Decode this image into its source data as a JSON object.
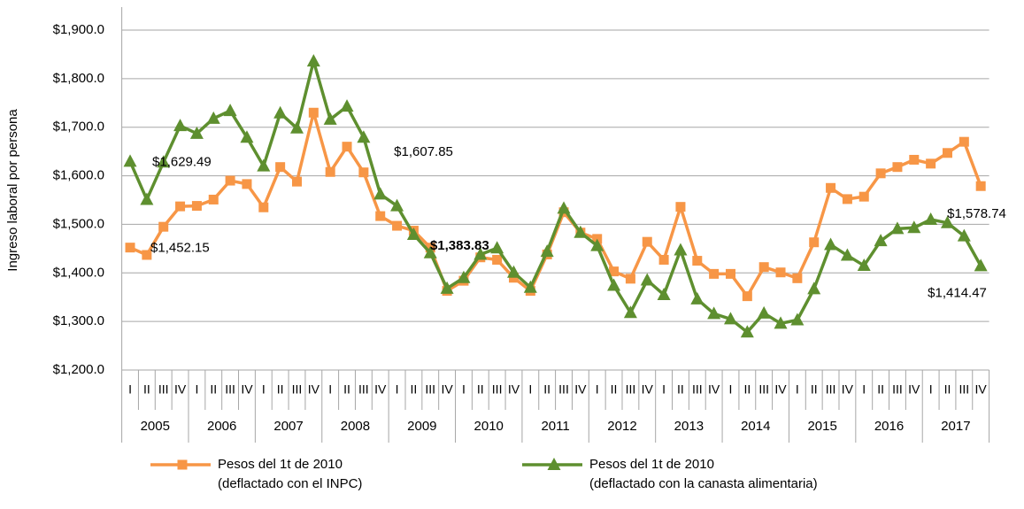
{
  "chart_data": {
    "type": "line",
    "y_label": "Ingreso laboral por persona",
    "categories": [
      "I",
      "II",
      "III",
      "IV",
      "I",
      "II",
      "III",
      "IV",
      "I",
      "II",
      "III",
      "IV",
      "I",
      "II",
      "III",
      "IV",
      "I",
      "II",
      "III",
      "IV",
      "I",
      "II",
      "III",
      "IV",
      "I",
      "II",
      "III",
      "IV",
      "I",
      "II",
      "III",
      "IV",
      "I",
      "II",
      "III",
      "IV",
      "I",
      "II",
      "III",
      "IV",
      "I",
      "II",
      "III",
      "IV",
      "I",
      "II",
      "III",
      "IV",
      "I",
      "II",
      "III",
      "IV"
    ],
    "groups": [
      "2005",
      "2006",
      "2007",
      "2008",
      "2009",
      "2010",
      "2011",
      "2012",
      "2013",
      "2014",
      "2015",
      "2016",
      "2017"
    ],
    "ylim": [
      1200,
      1900
    ],
    "yticks": [
      {
        "value": 1200,
        "label": "$1,200.0"
      },
      {
        "value": 1300,
        "label": "$1,300.0"
      },
      {
        "value": 1400,
        "label": "$1,400.0"
      },
      {
        "value": 1500,
        "label": "$1,500.0"
      },
      {
        "value": 1600,
        "label": "$1,600.0"
      },
      {
        "value": 1700,
        "label": "$1,700.0"
      },
      {
        "value": 1800,
        "label": "$1,800.0"
      },
      {
        "value": 1900,
        "label": "$1,900.0"
      }
    ],
    "grid": true,
    "series": [
      {
        "name": "Pesos del 1t de 2010",
        "note": "(deflactado con el INPC)",
        "color": "#f79646",
        "marker": "square",
        "values": [
          1452.15,
          1437,
          1495,
          1537,
          1538,
          1551,
          1590,
          1583,
          1535,
          1618,
          1588,
          1730,
          1607.85,
          1660,
          1607,
          1517,
          1497,
          1487,
          1452,
          1363,
          1383.83,
          1432,
          1427,
          1390,
          1363,
          1438,
          1525,
          1483,
          1470,
          1403,
          1388,
          1464,
          1427,
          1536,
          1425,
          1398,
          1398,
          1352,
          1412,
          1401,
          1389,
          1463,
          1575,
          1552,
          1557,
          1605,
          1618,
          1633,
          1625,
          1647,
          1670,
          1578.74
        ]
      },
      {
        "name": "Pesos del 1t de 2010",
        "note": "(deflactado con la canasta alimentaria)",
        "color": "#5e8f2f",
        "marker": "triangle",
        "values": [
          1629.49,
          1551,
          1628,
          1703,
          1687,
          1718,
          1734,
          1679,
          1620,
          1729,
          1698,
          1836,
          1716,
          1743,
          1679,
          1562,
          1538,
          1479,
          1441,
          1368,
          1390,
          1438,
          1451,
          1401,
          1370,
          1444,
          1533,
          1483,
          1456,
          1374,
          1318,
          1385,
          1355,
          1447,
          1346,
          1316,
          1305,
          1278,
          1317,
          1296,
          1303,
          1367,
          1458,
          1436,
          1415,
          1466,
          1491,
          1493,
          1510,
          1503,
          1476,
          1414.47
        ]
      }
    ],
    "annotations": [
      {
        "text": "$1,629.49",
        "series": 1,
        "index": 0,
        "bold": false
      },
      {
        "text": "$1,452.15",
        "series": 0,
        "index": 0,
        "bold": false
      },
      {
        "text": "$1,607.85",
        "series": 0,
        "index": 12,
        "bold": false
      },
      {
        "text": "$1,383.83",
        "series": 0,
        "index": 20,
        "bold": true
      },
      {
        "text": "$1,578.74",
        "series": 0,
        "index": 51,
        "bold": false
      },
      {
        "text": "$1,414.47",
        "series": 1,
        "index": 51,
        "bold": false
      }
    ]
  }
}
